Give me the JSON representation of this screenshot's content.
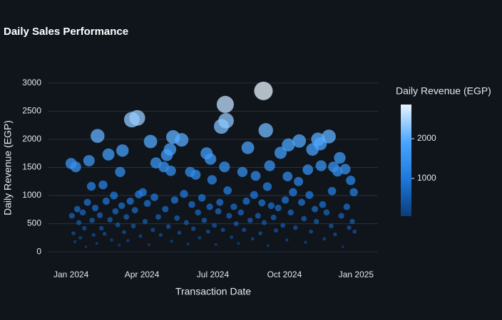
{
  "chart_data": {
    "type": "scatter",
    "title": "Daily Sales Performance",
    "x_label": "Transaction Date",
    "y_label": "Daily Revenue (EGP)",
    "x": [
      "2024-01-01",
      "2024-01-07",
      "2024-01-24",
      "2024-02-04",
      "2024-01-27",
      "2024-02-11",
      "2024-02-18",
      "2024-02-25",
      "2024-03-07",
      "2024-03-04",
      "2024-03-19",
      "2024-03-26",
      "2024-04-12",
      "2024-04-19",
      "2024-04-29",
      "2024-05-03",
      "2024-05-07",
      "2024-05-11",
      "2024-05-22",
      "2024-05-08",
      "2024-06-02",
      "2024-06-09",
      "2024-06-23",
      "2024-06-28",
      "2024-07-17",
      "2024-07-12",
      "2024-07-18",
      "2024-07-16",
      "2024-06-30",
      "2024-08-08",
      "2024-08-15",
      "2024-08-25",
      "2024-09-04",
      "2024-09-07",
      "2024-09-12",
      "2024-09-09",
      "2024-09-26",
      "2024-10-06",
      "2024-10-20",
      "2024-10-05",
      "2024-10-31",
      "2024-11-06",
      "2024-11-13",
      "2024-11-16",
      "2024-11-27",
      "2024-12-03",
      "2024-12-08",
      "2024-12-11",
      "2024-12-18",
      "2024-12-25",
      "2024-12-29",
      "2024-11-17",
      "2024-10-19",
      "2024-07-20",
      "2024-01-02",
      "2024-01-04",
      "2024-01-06",
      "2024-01-09",
      "2024-01-11",
      "2024-01-13",
      "2024-01-16",
      "2024-01-18",
      "2024-01-20",
      "2024-01-22",
      "2024-01-28",
      "2024-01-30",
      "2024-02-01",
      "2024-02-03",
      "2024-02-07",
      "2024-02-09",
      "2024-02-13",
      "2024-02-15",
      "2024-02-20",
      "2024-02-22",
      "2024-02-27",
      "2024-03-01",
      "2024-03-03",
      "2024-03-06",
      "2024-03-09",
      "2024-03-12",
      "2024-03-14",
      "2024-03-17",
      "2024-03-21",
      "2024-03-23",
      "2024-03-28",
      "2024-03-30",
      "2024-04-02",
      "2024-04-05",
      "2024-04-08",
      "2024-04-10",
      "2024-04-15",
      "2024-04-17",
      "2024-04-22",
      "2024-04-25",
      "2024-05-01",
      "2024-05-05",
      "2024-05-09",
      "2024-05-13",
      "2024-05-16",
      "2024-05-19",
      "2024-05-25",
      "2024-05-28",
      "2024-05-30",
      "2024-06-04",
      "2024-06-06",
      "2024-06-12",
      "2024-06-14",
      "2024-06-17",
      "2024-06-20",
      "2024-06-25",
      "2024-06-27",
      "2024-07-03",
      "2024-07-05",
      "2024-07-08",
      "2024-07-10",
      "2024-07-14",
      "2024-07-22",
      "2024-07-25",
      "2024-07-28",
      "2024-07-31",
      "2024-08-03",
      "2024-08-06",
      "2024-08-10",
      "2024-08-13",
      "2024-08-18",
      "2024-08-21",
      "2024-08-23",
      "2024-08-28",
      "2024-08-31",
      "2024-09-02",
      "2024-09-05",
      "2024-09-10",
      "2024-09-14",
      "2024-09-17",
      "2024-09-20",
      "2024-09-23",
      "2024-09-29",
      "2024-10-02",
      "2024-10-04",
      "2024-10-09",
      "2024-10-12",
      "2024-10-15",
      "2024-10-23",
      "2024-10-26",
      "2024-10-28",
      "2024-11-02",
      "2024-11-04",
      "2024-11-09",
      "2024-11-11",
      "2024-11-19",
      "2024-11-21",
      "2024-11-24",
      "2024-11-30",
      "2024-12-01",
      "2024-12-05",
      "2024-12-13",
      "2024-12-15",
      "2024-12-20",
      "2024-12-23",
      "2024-12-27",
      "2024-12-30"
    ],
    "values": [
      1570,
      1510,
      1620,
      2060,
      1165,
      1190,
      1730,
      1000,
      1800,
      1420,
      2350,
      2380,
      1960,
      1580,
      1510,
      1720,
      1820,
      2040,
      1990,
      1440,
      1420,
      1370,
      1750,
      1650,
      2620,
      2230,
      2330,
      1510,
      1280,
      1420,
      1850,
      1350,
      2860,
      2160,
      1530,
      1160,
      1760,
      1900,
      1970,
      1340,
      1460,
      1820,
      2000,
      1920,
      2050,
      1510,
      1430,
      1670,
      1470,
      1270,
      1060,
      1530,
      1250,
      1090,
      640,
      330,
      180,
      760,
      520,
      250,
      700,
      420,
      90,
      880,
      560,
      300,
      780,
      150,
      650,
      420,
      320,
      900,
      570,
      210,
      720,
      480,
      120,
      820,
      350,
      620,
      200,
      900,
      460,
      740,
      1020,
      280,
      1060,
      540,
      860,
      130,
      390,
      970,
      620,
      300,
      760,
      450,
      190,
      920,
      600,
      340,
      1030,
      520,
      140,
      840,
      410,
      700,
      250,
      960,
      560,
      360,
      800,
      470,
      130,
      720,
      880,
      390,
      640,
      260,
      800,
      500,
      150,
      700,
      390,
      900,
      560,
      230,
      1010,
      640,
      330,
      870,
      520,
      110,
      820,
      610,
      380,
      780,
      470,
      920,
      210,
      700,
      1060,
      430,
      880,
      590,
      170,
      1010,
      360,
      760,
      540,
      840,
      230,
      700,
      460,
      1080,
      310,
      640,
      90,
      800,
      430,
      540,
      360
    ],
    "xlim": [
      "2023-12-03",
      "2025-01-29"
    ],
    "xticks": [
      {
        "value": "2024-01-01",
        "label": "Jan 2024"
      },
      {
        "value": "2024-04-01",
        "label": "Apr 2024"
      },
      {
        "value": "2024-07-01",
        "label": "Jul 2024"
      },
      {
        "value": "2024-10-01",
        "label": "Oct 2024"
      },
      {
        "value": "2025-01-01",
        "label": "Jan 2025"
      }
    ],
    "ylim": [
      -150,
      3250
    ],
    "yticks": [
      0,
      500,
      1000,
      1500,
      2000,
      2500,
      3000
    ],
    "grid": true,
    "colorscale": [
      "#0a3d7a",
      "#1e78dc",
      "#4aa6ff",
      "#e8f4ff"
    ],
    "colorbar": {
      "title": "Daily Revenue (EGP)",
      "range": [
        50,
        2860
      ],
      "ticks": [
        1000,
        2000
      ]
    }
  }
}
